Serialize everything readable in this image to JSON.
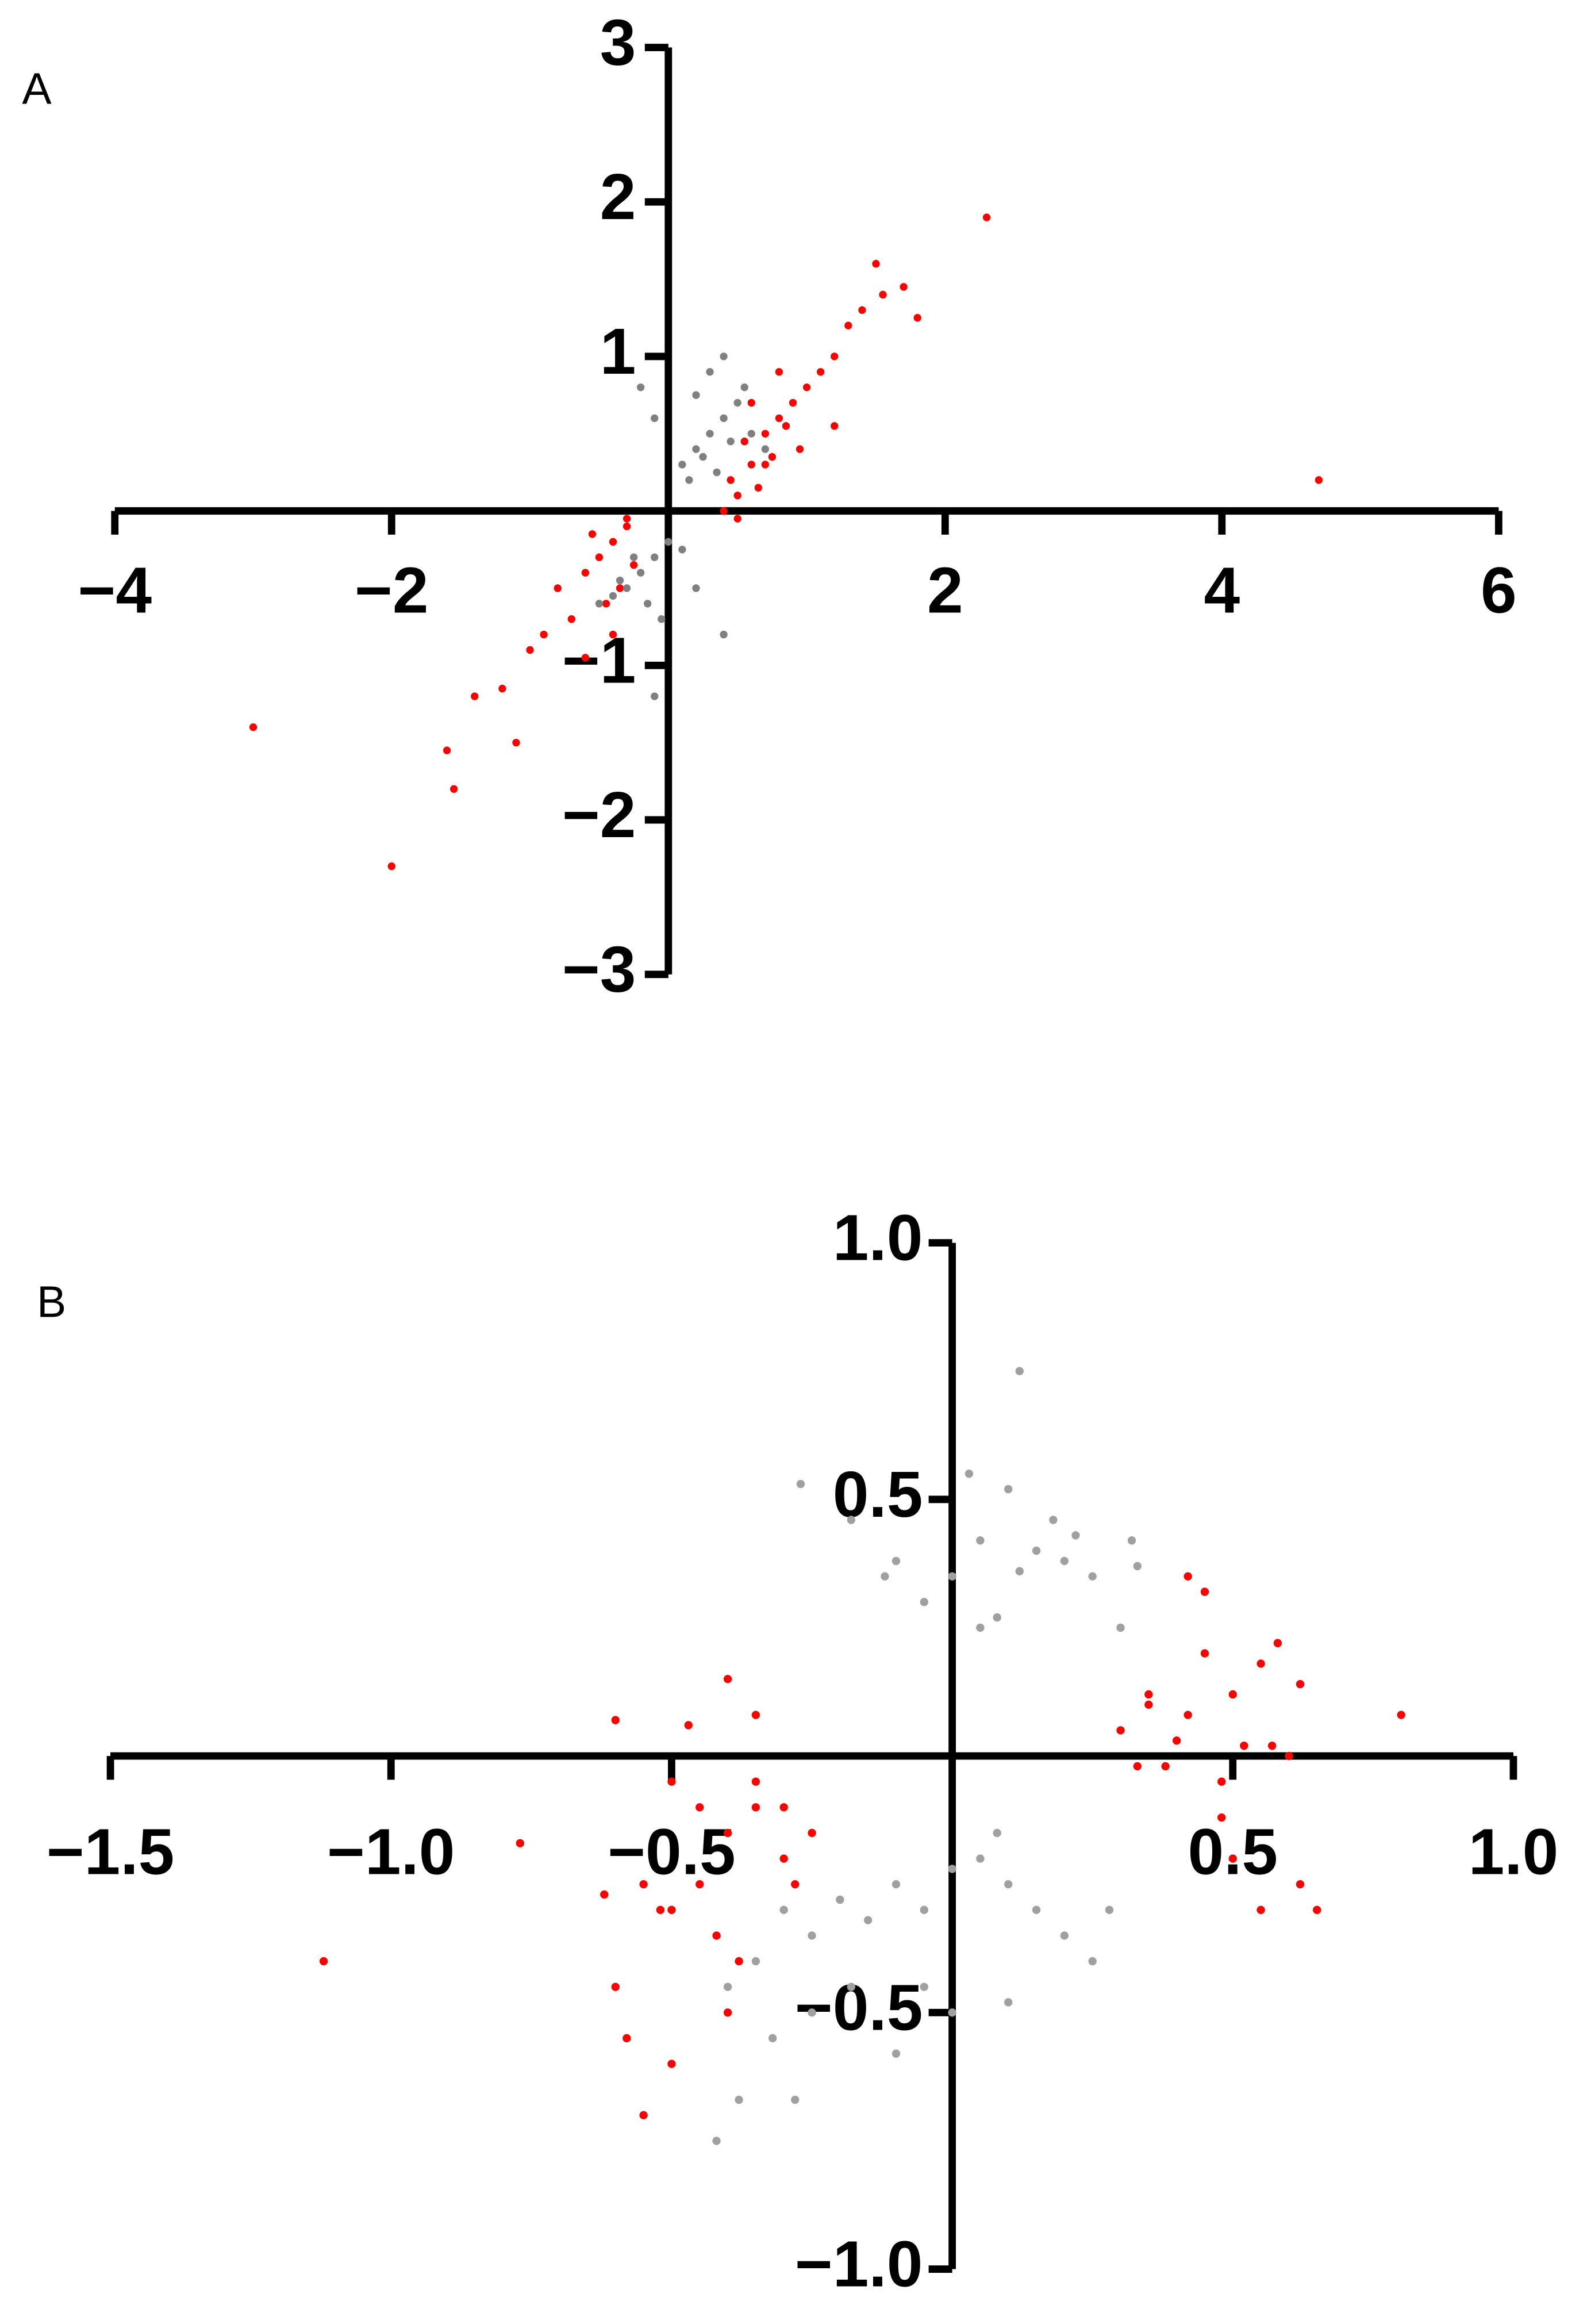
{
  "chart_data": [
    {
      "type": "scatter",
      "panel_label": "A",
      "xlim": [
        -4,
        6
      ],
      "ylim": [
        -3,
        3
      ],
      "xticks": [
        {
          "value": -4,
          "label": "−4"
        },
        {
          "value": -2,
          "label": "−2"
        },
        2,
        4,
        6
      ],
      "yticks": [
        {
          "value": -3,
          "label": "−3"
        },
        {
          "value": -2,
          "label": "−2"
        },
        {
          "value": -1,
          "label": "−1"
        },
        1,
        2,
        3
      ],
      "series": [
        {
          "color": "#ff0000",
          "x": [
            0.5,
            0.6,
            0.7,
            0.8,
            0.9,
            1.0,
            0.45,
            0.55,
            0.65,
            0.75,
            0.85,
            0.95,
            0.6,
            0.8,
            1.1,
            1.2,
            1.3,
            1.4,
            1.5,
            1.55,
            1.7,
            1.8,
            2.3,
            4.7,
            1.2,
            0.4,
            0.5,
            0.7,
            -0.3,
            -0.4,
            -0.5,
            -0.6,
            -0.35,
            -0.45,
            -0.55,
            -0.25,
            -0.7,
            -0.8,
            -0.9,
            -1.0,
            -0.6,
            -1.2,
            -1.4,
            -1.6,
            -1.55,
            -1.1,
            -2.0,
            -3.0,
            -0.4,
            -0.3
          ],
          "values": [
            0.1,
            0.3,
            0.5,
            0.6,
            0.7,
            0.8,
            0.2,
            0.45,
            0.15,
            0.35,
            0.55,
            0.4,
            0.7,
            0.9,
            0.9,
            1.0,
            1.2,
            1.3,
            1.6,
            1.4,
            1.45,
            1.25,
            1.9,
            0.2,
            0.55,
            0.0,
            -0.05,
            0.3,
            -0.1,
            -0.2,
            -0.3,
            -0.4,
            -0.5,
            -0.6,
            -0.15,
            -0.35,
            -0.7,
            -0.5,
            -0.8,
            -0.9,
            -0.95,
            -1.15,
            -1.2,
            -1.55,
            -1.8,
            -1.5,
            -2.3,
            -1.4,
            -0.8,
            -0.05
          ]
        },
        {
          "color": "#808080",
          "x": [
            0.1,
            0.2,
            0.3,
            0.4,
            0.5,
            0.15,
            0.25,
            0.35,
            0.45,
            0.55,
            0.3,
            0.4,
            0.2,
            -0.1,
            -0.2,
            0.6,
            0.7,
            -0.1,
            -0.2,
            -0.3,
            -0.4,
            0,
            0.1,
            -0.15,
            -0.25,
            -0.35,
            -0.05,
            0.2,
            0.4,
            -0.1,
            -0.5
          ],
          "values": [
            0.3,
            0.4,
            0.5,
            0.6,
            0.7,
            0.2,
            0.35,
            0.25,
            0.45,
            0.8,
            0.9,
            1.0,
            0.75,
            0.6,
            0.8,
            0.5,
            0.4,
            -0.3,
            -0.4,
            -0.5,
            -0.55,
            -0.2,
            -0.25,
            -0.6,
            -0.3,
            -0.45,
            -0.7,
            -0.5,
            -0.8,
            -1.2,
            -0.6
          ]
        }
      ]
    },
    {
      "type": "scatter",
      "panel_label": "B",
      "xlim": [
        -1.5,
        1.0
      ],
      "ylim": [
        -1.0,
        1.0
      ],
      "xticks": [
        {
          "value": -1.5,
          "label": "−1.5"
        },
        {
          "value": -1,
          "label": "−1.0"
        },
        {
          "value": -0.5,
          "label": "−0.5"
        },
        0.5,
        {
          "value": 1,
          "label": "1.0"
        }
      ],
      "yticks": [
        {
          "value": -1,
          "label": "−1.0"
        },
        {
          "value": -0.5,
          "label": "−0.5"
        },
        0.5,
        {
          "value": 1,
          "label": "1.0"
        }
      ],
      "series": [
        {
          "color": "#ff0000",
          "x": [
            0.3,
            0.35,
            0.4,
            0.45,
            0.5,
            0.55,
            0.58,
            0.62,
            0.42,
            0.38,
            0.48,
            0.52,
            0.57,
            0.8,
            0.6,
            0.45,
            0.48,
            0.35,
            0.33,
            0.42,
            0.65,
            0.62,
            0.55,
            0.5,
            -0.5,
            -0.45,
            -0.4,
            -0.35,
            -0.3,
            -0.25,
            -0.45,
            -0.5,
            -0.42,
            -0.38,
            -0.55,
            -0.6,
            -0.58,
            -0.5,
            -0.4,
            -0.35,
            -0.4,
            -0.35,
            -0.6,
            -0.47,
            -1.12,
            -0.77,
            -0.62,
            -0.52,
            -0.3,
            -0.28,
            -0.55
          ],
          "values": [
            0.05,
            0.1,
            0.03,
            0.2,
            0.12,
            0.18,
            0.22,
            0.14,
            0.08,
            -0.02,
            -0.05,
            0.02,
            0.02,
            0.08,
            0.0,
            0.32,
            -0.12,
            0.12,
            -0.02,
            0.35,
            -0.3,
            -0.25,
            -0.3,
            -0.2,
            -0.05,
            -0.1,
            -0.15,
            -0.1,
            -0.2,
            -0.15,
            -0.25,
            -0.3,
            -0.35,
            -0.4,
            -0.25,
            -0.45,
            -0.55,
            -0.6,
            -0.5,
            -0.05,
            0.15,
            0.08,
            0.07,
            0.06,
            -0.4,
            -0.17,
            -0.27,
            -0.3,
            -0.1,
            -0.25,
            -0.7
          ]
        },
        {
          "color": "#a0a0a0",
          "x": [
            -0.27,
            -0.18,
            -0.1,
            -0.05,
            0.0,
            0.05,
            0.1,
            0.12,
            0.15,
            0.18,
            0.2,
            0.22,
            0.25,
            0.32,
            0.33,
            0.3,
            0.12,
            0.03,
            0.05,
            0.08,
            -0.12,
            -0.3,
            -0.25,
            -0.2,
            -0.15,
            -0.1,
            -0.05,
            0,
            0.05,
            0.1,
            0.15,
            0.2,
            0.25,
            0.28,
            -0.35,
            -0.4,
            -0.32,
            -0.25,
            -0.1,
            -0.05,
            0.0,
            0.1,
            -0.42,
            -0.38,
            -0.28,
            -0.18,
            0.08
          ],
          "values": [
            0.53,
            0.46,
            0.38,
            0.3,
            0.35,
            0.42,
            0.52,
            0.36,
            0.4,
            0.46,
            0.38,
            0.43,
            0.35,
            0.42,
            0.37,
            0.25,
            0.75,
            0.55,
            0.25,
            0.27,
            0.35,
            -0.3,
            -0.35,
            -0.28,
            -0.32,
            -0.25,
            -0.3,
            -0.22,
            -0.2,
            -0.25,
            -0.3,
            -0.35,
            -0.4,
            -0.3,
            -0.4,
            -0.45,
            -0.55,
            -0.5,
            -0.58,
            -0.45,
            -0.5,
            -0.48,
            -0.75,
            -0.67,
            -0.67,
            -0.45,
            -0.15
          ]
        }
      ]
    }
  ]
}
